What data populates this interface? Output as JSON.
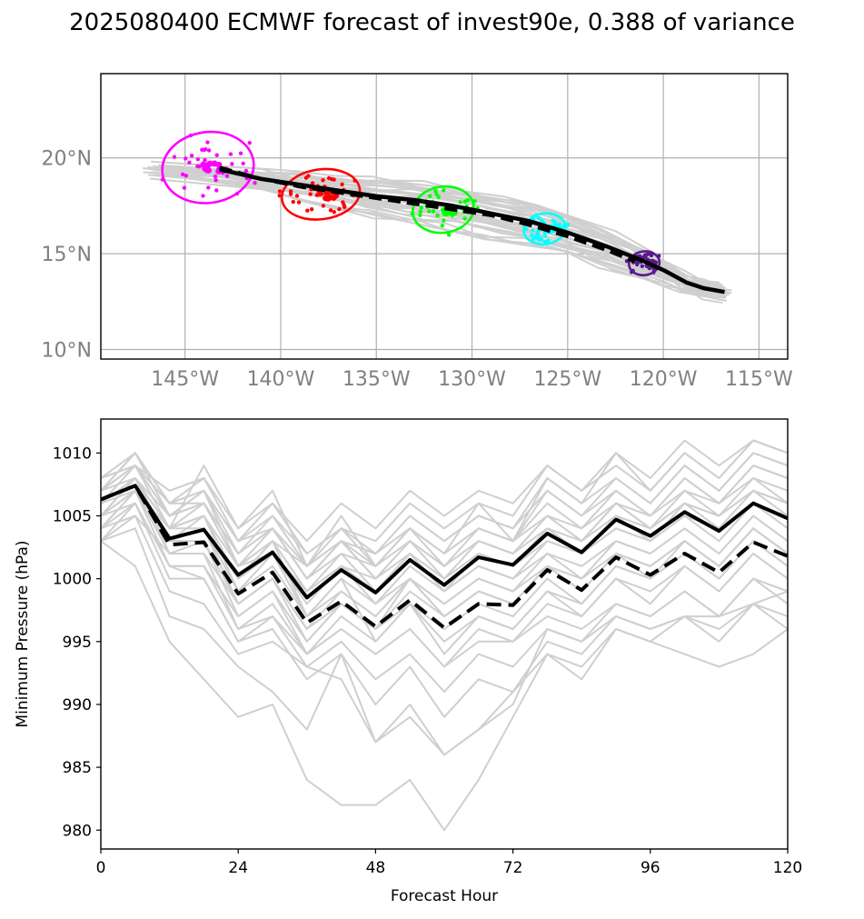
{
  "title": "2025080400 ECMWF forecast of invest90e, 0.388 of variance",
  "chart_data": [
    {
      "type": "map_track",
      "lon_ticks": [
        "145°W",
        "140°W",
        "135°W",
        "130°W",
        "125°W",
        "120°W",
        "115°W"
      ],
      "lon_tick_values": [
        -145,
        -140,
        -135,
        -130,
        -125,
        -120,
        -115
      ],
      "lat_ticks": [
        "20°N",
        "15°N",
        "10°N"
      ],
      "lat_tick_values": [
        20,
        15,
        10
      ],
      "lon_range": [
        -149.4,
        -113.5
      ],
      "lat_range": [
        9.5,
        24.4
      ],
      "grid": true,
      "mean_track": [
        {
          "lon": -143.2,
          "lat": 19.4
        },
        {
          "lon": -141.0,
          "lat": 18.9
        },
        {
          "lon": -139.0,
          "lat": 18.6
        },
        {
          "lon": -137.0,
          "lat": 18.3
        },
        {
          "lon": -135.0,
          "lat": 18.0
        },
        {
          "lon": -133.0,
          "lat": 17.8
        },
        {
          "lon": -131.0,
          "lat": 17.5
        },
        {
          "lon": -129.0,
          "lat": 17.1
        },
        {
          "lon": -127.0,
          "lat": 16.7
        },
        {
          "lon": -125.0,
          "lat": 16.1
        },
        {
          "lon": -123.0,
          "lat": 15.4
        },
        {
          "lon": -121.0,
          "lat": 14.6
        },
        {
          "lon": -119.9,
          "lat": 14.1
        },
        {
          "lon": -118.8,
          "lat": 13.5
        },
        {
          "lon": -117.9,
          "lat": 13.2
        },
        {
          "lon": -116.8,
          "lat": 13.0
        }
      ],
      "control_track": [
        {
          "lon": -143.2,
          "lat": 19.5
        },
        {
          "lon": -141.0,
          "lat": 18.9
        },
        {
          "lon": -139.0,
          "lat": 18.5
        },
        {
          "lon": -137.0,
          "lat": 18.2
        },
        {
          "lon": -135.0,
          "lat": 17.9
        },
        {
          "lon": -133.0,
          "lat": 17.6
        },
        {
          "lon": -131.0,
          "lat": 17.3
        },
        {
          "lon": -129.0,
          "lat": 17.0
        },
        {
          "lon": -127.0,
          "lat": 16.5
        },
        {
          "lon": -125.0,
          "lat": 15.9
        },
        {
          "lon": -123.0,
          "lat": 15.2
        },
        {
          "lon": -121.5,
          "lat": 14.6
        }
      ],
      "ellipses": [
        {
          "color": "#ff00ff",
          "lon": -143.8,
          "lat": 19.5,
          "rlon": 2.4,
          "rlat": 1.85
        },
        {
          "color": "#ff0000",
          "lon": -137.9,
          "lat": 18.1,
          "rlon": 2.05,
          "rlat": 1.3
        },
        {
          "color": "#00ff00",
          "lon": -131.5,
          "lat": 17.3,
          "rlon": 1.6,
          "rlat": 1.2
        },
        {
          "color": "#00ffff",
          "lon": -126.2,
          "lat": 16.3,
          "rlon": 1.1,
          "rlat": 0.8
        },
        {
          "color": "#5b1a8b",
          "lon": -121.0,
          "lat": 14.5,
          "rlon": 0.8,
          "rlat": 0.62
        }
      ]
    },
    {
      "type": "line",
      "xlabel": "Forecast Hour",
      "ylabel": "Minimum Pressure (hPa)",
      "xlim": [
        0,
        120
      ],
      "ylim": [
        978.5,
        1012.7
      ],
      "x_ticks": [
        0,
        24,
        48,
        72,
        96,
        120
      ],
      "y_ticks": [
        1010,
        1005,
        1000,
        995,
        990,
        985,
        980
      ],
      "x": [
        0,
        6,
        12,
        18,
        24,
        30,
        36,
        42,
        48,
        54,
        60,
        66,
        72,
        78,
        84,
        90,
        96,
        102,
        108,
        114,
        120
      ],
      "series": [
        {
          "style": "mean",
          "values": [
            1006.3,
            1007.4,
            1003.2,
            1003.9,
            1000.3,
            1002.1,
            998.5,
            1000.7,
            998.9,
            1001.5,
            999.5,
            1001.7,
            1001.1,
            1003.6,
            1002.1,
            1004.7,
            1003.4,
            1005.3,
            1003.8,
            1006.0,
            1004.8
          ]
        },
        {
          "style": "control",
          "values": [
            1006.3,
            1007.4,
            1002.7,
            1002.9,
            998.8,
            1000.5,
            996.5,
            998.2,
            996.2,
            998.3,
            996.1,
            998.0,
            997.9,
            1000.7,
            999.1,
            1001.7,
            1000.3,
            1002.0,
            1000.5,
            1002.9,
            1001.8
          ]
        }
      ],
      "members": [
        [
          1008,
          1010,
          1006,
          1007,
          1003,
          1005,
          1002,
          1004,
          1002,
          1005,
          1003,
          1005,
          1004,
          1007,
          1005,
          1008,
          1006,
          1009,
          1007,
          1010,
          1009
        ],
        [
          1007,
          1009,
          1005,
          1006,
          1002,
          1004,
          1000,
          1003,
          1000,
          1003,
          1001,
          1004,
          1003,
          1006,
          1004,
          1007,
          1005,
          1008,
          1006,
          1009,
          1008
        ],
        [
          1006,
          1008,
          1004,
          1009,
          1004,
          1007,
          1001,
          1005,
          1001,
          1004,
          1002,
          1006,
          1003,
          1008,
          1006,
          1010,
          1007,
          1010,
          1008,
          1011,
          1010
        ],
        [
          1005,
          1008,
          1003,
          1004,
          999,
          1001,
          997,
          999,
          997,
          1000,
          998,
          1000,
          999,
          1002,
          1000,
          1003,
          1002,
          1004,
          1002,
          1005,
          1003
        ],
        [
          1004,
          1007,
          1002,
          1003,
          998,
          1000,
          995,
          998,
          996,
          999,
          997,
          999,
          998,
          1001,
          999,
          1002,
          1001,
          1003,
          1001,
          1004,
          1002
        ],
        [
          1007,
          1010,
          1005,
          1007,
          1001,
          1003,
          999,
          1002,
          999,
          1002,
          1000,
          1003,
          1002,
          1005,
          1003,
          1006,
          1004,
          1007,
          1005,
          1008,
          1006
        ],
        [
          1006,
          1009,
          1004,
          1005,
          1000,
          1002,
          997,
          1000,
          995,
          998,
          994,
          997,
          996,
          999,
          998,
          1001,
          1000,
          1002,
          1000,
          1003,
          1001
        ],
        [
          1005,
          1008,
          1003,
          1003,
          997,
          999,
          994,
          996,
          994,
          996,
          993,
          996,
          995,
          998,
          997,
          1000,
          999,
          1001,
          999,
          1002,
          1000
        ],
        [
          1004,
          1006,
          1001,
          1001,
          996,
          997,
          993,
          995,
          992,
          994,
          991,
          994,
          993,
          996,
          995,
          998,
          997,
          999,
          997,
          1000,
          999
        ],
        [
          1007,
          1009,
          1005,
          1006,
          1002,
          1004,
          1001,
          1004,
          1001,
          1004,
          1002,
          1004,
          1003,
          1005,
          1004,
          1006,
          1005,
          1007,
          1006,
          1008,
          1007
        ],
        [
          1003,
          1006,
          1000,
          1000,
          995,
          996,
          992,
          994,
          990,
          993,
          989,
          992,
          991,
          994,
          993,
          996,
          995,
          997,
          995,
          998,
          997
        ],
        [
          1006,
          1008,
          1004,
          1004,
          1000,
          1003,
          1001,
          1003,
          1002,
          1004,
          1001,
          1003,
          1002,
          1004,
          1003,
          1005,
          1004,
          1006,
          1005,
          1007,
          1006
        ],
        [
          1005,
          1007,
          1003,
          1005,
          999,
          1002,
          998,
          1001,
          1000,
          1002,
          999,
          1001,
          1000,
          1003,
          1002,
          1004,
          1003,
          1005,
          1004,
          1006,
          1005
        ],
        [
          1008,
          1009,
          1006,
          1008,
          1003,
          1006,
          1002,
          1004,
          1003,
          1006,
          1004,
          1006,
          1005,
          1009,
          1007,
          1009,
          1007,
          1010,
          1008,
          1011,
          1010
        ],
        [
          1007,
          1008,
          1005,
          1007,
          1002,
          1005,
          1001,
          1003,
          1002,
          1005,
          1003,
          1005,
          1004,
          1008,
          1006,
          1008,
          1006,
          1009,
          1007,
          1010,
          1009
        ],
        [
          1006,
          1007,
          1004,
          1006,
          1001,
          1004,
          1000,
          1002,
          1001,
          1004,
          1002,
          1004,
          1003,
          1007,
          1005,
          1007,
          1005,
          1008,
          1006,
          1009,
          1008
        ],
        [
          1005,
          1008,
          1002,
          1002,
          996,
          998,
          994,
          997,
          995,
          998,
          996,
          998,
          997,
          1000,
          998,
          1001,
          1000,
          1002,
          1000,
          1003,
          1001
        ],
        [
          1004,
          1007,
          1001,
          1001,
          997,
          999,
          995,
          998,
          996,
          1000,
          997,
          999,
          998,
          1001,
          999,
          1002,
          1001,
          1003,
          1001,
          1004,
          1002
        ],
        [
          1006,
          1008,
          1005,
          1006,
          1001,
          1003,
          999,
          1001,
          999,
          1002,
          999,
          1002,
          1001,
          1003,
          1002,
          1004,
          1003,
          1005,
          1003,
          1006,
          1004
        ],
        [
          1007,
          1009,
          1006,
          1007,
          1003,
          1004,
          1000,
          1003,
          1000,
          1003,
          1001,
          1003,
          1002,
          1005,
          1003,
          1006,
          1004,
          1006,
          1005,
          1007,
          1006
        ],
        [
          1003,
          1005,
          999,
          998,
          994,
          995,
          993,
          992,
          987,
          990,
          986,
          988,
          990,
          996,
          995,
          997,
          996,
          997,
          996,
          998,
          996
        ],
        [
          1005,
          1007,
          1003,
          1004,
          1000,
          1003,
          997,
          1000,
          998,
          1001,
          999,
          1001,
          1000,
          1002,
          1001,
          1003,
          1002,
          1004,
          1002,
          1005,
          1003
        ],
        [
          1004,
          1005,
          1002,
          1002,
          998,
          1000,
          996,
          999,
          997,
          1000,
          998,
          1000,
          999,
          1001,
          1000,
          1002,
          1001,
          1003,
          1001,
          1004,
          1002
        ],
        [
          1003,
          1001,
          995,
          992,
          989,
          990,
          984,
          982,
          982,
          984,
          980,
          984,
          989,
          994,
          992,
          996,
          995,
          994,
          993,
          994,
          996
        ],
        [
          1003,
          1004,
          997,
          996,
          993,
          991,
          988,
          994,
          987,
          989,
          986,
          988,
          991,
          995,
          994,
          997,
          996,
          997,
          997,
          998,
          999
        ],
        [
          1005,
          1006,
          1001,
          1000,
          995,
          997,
          994,
          996,
          994,
          996,
          993,
          995,
          995,
          997,
          996,
          998,
          997,
          999,
          997,
          1000,
          998
        ],
        [
          1008,
          1009,
          1007,
          1008,
          1004,
          1006,
          1003,
          1006,
          1004,
          1007,
          1005,
          1007,
          1006,
          1009,
          1007,
          1010,
          1008,
          1011,
          1009,
          1011,
          1010
        ],
        [
          1007,
          1010,
          1006,
          1006,
          1002,
          1004,
          1000,
          1003,
          1001,
          1003,
          1000,
          1002,
          1001,
          1004,
          1002,
          1005,
          1003,
          1006,
          1004,
          1007,
          1005
        ],
        [
          1006,
          1008,
          1004,
          1005,
          1001,
          1002,
          999,
          1001,
          998,
          1000,
          997,
          999,
          998,
          1001,
          999,
          1002,
          1000,
          1003,
          1001,
          1004,
          1002
        ],
        [
          1005,
          1007,
          1003,
          1004,
          998,
          1000,
          996,
          998,
          996,
          998,
          995,
          997,
          996,
          999,
          997,
          1000,
          998,
          1001,
          999,
          1002,
          1000
        ]
      ]
    }
  ]
}
